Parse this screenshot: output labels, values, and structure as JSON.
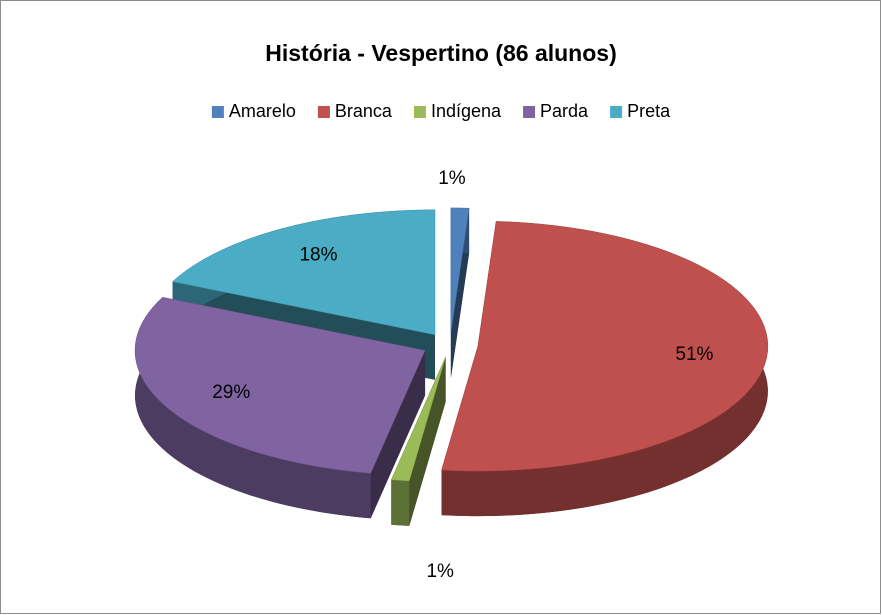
{
  "chart_data": {
    "type": "pie",
    "title": "História - Vespertino (86 alunos)",
    "categories": [
      "Amarelo",
      "Branca",
      "Indígena",
      "Parda",
      "Preta"
    ],
    "values": [
      1,
      51,
      1,
      29,
      18
    ],
    "value_labels": [
      "1%",
      "51%",
      "1%",
      "29%",
      "18%"
    ],
    "colors": [
      "#4f81bd",
      "#c0504d",
      "#9bbb59",
      "#8064a2",
      "#4bacc6"
    ],
    "legend": "top"
  }
}
